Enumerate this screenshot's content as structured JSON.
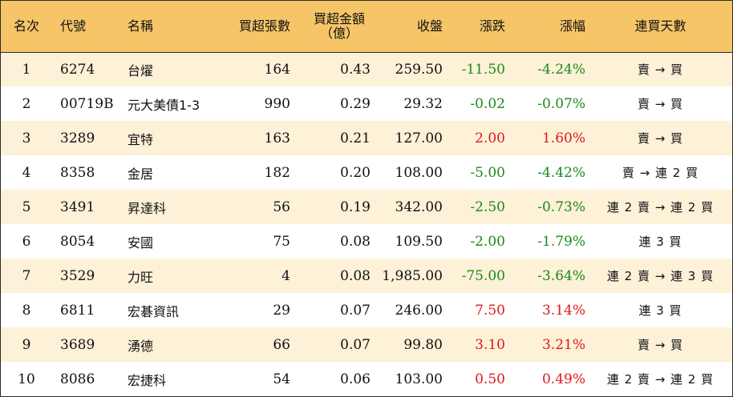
{
  "headers": {
    "rank": "名次",
    "code": "代號",
    "name": "名稱",
    "net_lots": "買超張數",
    "net_amount": "買超金額",
    "net_amount_unit": "（億）",
    "close": "收盤",
    "change": "漲跌",
    "change_pct": "漲幅",
    "streak": "連買天數"
  },
  "rows": [
    {
      "rank": "1",
      "code": "6274",
      "name": "台燿",
      "net_lots": "164",
      "net_amount": "0.43",
      "close": "259.50",
      "change": "-11.50",
      "change_pct": "-4.24%",
      "streak": "賣 → 買"
    },
    {
      "rank": "2",
      "code": "00719B",
      "name": "元大美債1-3",
      "net_lots": "990",
      "net_amount": "0.29",
      "close": "29.32",
      "change": "-0.02",
      "change_pct": "-0.07%",
      "streak": "賣 → 買"
    },
    {
      "rank": "3",
      "code": "3289",
      "name": "宜特",
      "net_lots": "163",
      "net_amount": "0.21",
      "close": "127.00",
      "change": "2.00",
      "change_pct": "1.60%",
      "streak": "賣 → 買"
    },
    {
      "rank": "4",
      "code": "8358",
      "name": "金居",
      "net_lots": "182",
      "net_amount": "0.20",
      "close": "108.00",
      "change": "-5.00",
      "change_pct": "-4.42%",
      "streak": "賣 → 連 2 買"
    },
    {
      "rank": "5",
      "code": "3491",
      "name": "昇達科",
      "net_lots": "56",
      "net_amount": "0.19",
      "close": "342.00",
      "change": "-2.50",
      "change_pct": "-0.73%",
      "streak": "連 2 賣 → 連 2 買"
    },
    {
      "rank": "6",
      "code": "8054",
      "name": "安國",
      "net_lots": "75",
      "net_amount": "0.08",
      "close": "109.50",
      "change": "-2.00",
      "change_pct": "-1.79%",
      "streak": "連 3 買"
    },
    {
      "rank": "7",
      "code": "3529",
      "name": "力旺",
      "net_lots": "4",
      "net_amount": "0.08",
      "close": "1,985.00",
      "change": "-75.00",
      "change_pct": "-3.64%",
      "streak": "連 2 賣 → 連 3 買"
    },
    {
      "rank": "8",
      "code": "6811",
      "name": "宏碁資訊",
      "net_lots": "29",
      "net_amount": "0.07",
      "close": "246.00",
      "change": "7.50",
      "change_pct": "3.14%",
      "streak": "連 3 買"
    },
    {
      "rank": "9",
      "code": "3689",
      "name": "湧德",
      "net_lots": "66",
      "net_amount": "0.07",
      "close": "99.80",
      "change": "3.10",
      "change_pct": "3.21%",
      "streak": "賣 → 買"
    },
    {
      "rank": "10",
      "code": "8086",
      "name": "宏捷科",
      "net_lots": "54",
      "net_amount": "0.06",
      "close": "103.00",
      "change": "0.50",
      "change_pct": "0.49%",
      "streak": "連 2 賣 → 連 2 買"
    }
  ],
  "colors": {
    "header_bg": "#f6c567",
    "stripe_bg": "#fdf1d8",
    "up": "#e0181b",
    "down": "#1b8a1b"
  }
}
